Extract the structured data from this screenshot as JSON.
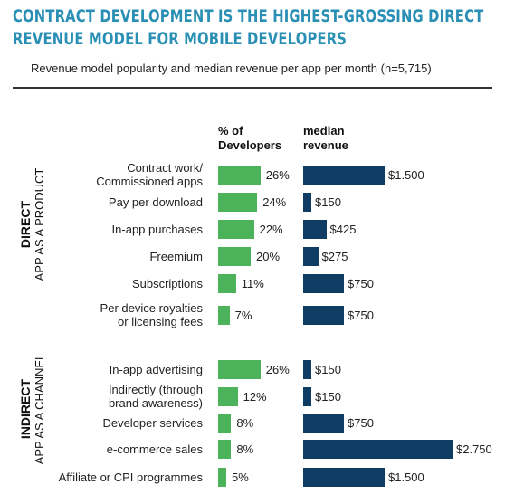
{
  "title_line1": "CONTRACT DEVELOPMENT IS THE HIGHEST-GROSSING DIRECT",
  "title_line2": "REVENUE MODEL FOR MOBILE DEVELOPERS",
  "subtitle": "Revenue model popularity and median revenue per app per month (n=5,715)",
  "colors": {
    "title": "#2a8fb4",
    "green": "#4cb35a",
    "blue": "#0e3c63"
  },
  "chart_data": {
    "type": "bar",
    "orientation": "horizontal",
    "column_headers": {
      "pct": [
        "% of",
        "Developers"
      ],
      "rev": [
        "median",
        "revenue"
      ]
    },
    "groups": [
      {
        "label": "DIRECT",
        "sublabel": "APP AS A PRODUCT",
        "categories": [
          {
            "label": [
              "Contract work/",
              "Commissioned apps"
            ],
            "pct": 26,
            "pct_label": "26%",
            "revenue": 1500,
            "revenue_label": "$1.500"
          },
          {
            "label": [
              "Pay per download"
            ],
            "pct": 24,
            "pct_label": "24%",
            "revenue": 150,
            "revenue_label": "$150"
          },
          {
            "label": [
              "In-app purchases"
            ],
            "pct": 22,
            "pct_label": "22%",
            "revenue": 425,
            "revenue_label": "$425"
          },
          {
            "label": [
              "Freemium"
            ],
            "pct": 20,
            "pct_label": "20%",
            "revenue": 275,
            "revenue_label": "$275"
          },
          {
            "label": [
              "Subscriptions"
            ],
            "pct": 11,
            "pct_label": "11%",
            "revenue": 750,
            "revenue_label": "$750"
          },
          {
            "label": [
              "Per device royalties",
              "or licensing fees"
            ],
            "pct": 7,
            "pct_label": "7%",
            "revenue": 750,
            "revenue_label": "$750"
          }
        ]
      },
      {
        "label": "INDIRECT",
        "sublabel": "APP AS A CHANNEL",
        "categories": [
          {
            "label": [
              "In-app advertising"
            ],
            "pct": 26,
            "pct_label": "26%",
            "revenue": 150,
            "revenue_label": "$150"
          },
          {
            "label": [
              "Indirectly (through",
              "brand awareness)"
            ],
            "pct": 12,
            "pct_label": "12%",
            "revenue": 150,
            "revenue_label": "$150"
          },
          {
            "label": [
              "Developer services"
            ],
            "pct": 8,
            "pct_label": "8%",
            "revenue": 750,
            "revenue_label": "$750"
          },
          {
            "label": [
              "e-commerce sales"
            ],
            "pct": 8,
            "pct_label": "8%",
            "revenue": 2750,
            "revenue_label": "$2.750"
          },
          {
            "label": [
              "Affiliate or CPI programmes"
            ],
            "pct": 5,
            "pct_label": "5%",
            "revenue": 1500,
            "revenue_label": "$1.500"
          }
        ]
      }
    ]
  }
}
